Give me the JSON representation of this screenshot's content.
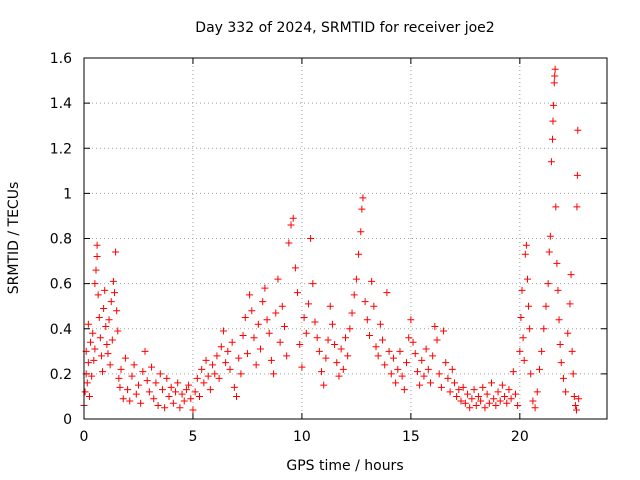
{
  "chart_data": {
    "type": "scatter",
    "title": "Day 332 of 2024, SRMTID for receiver joe2",
    "xlabel": "GPS time / hours",
    "ylabel": "SRMTID / TECUs",
    "xlim": [
      0,
      24
    ],
    "ylim": [
      0,
      1.6
    ],
    "xticks": [
      0,
      5,
      10,
      15,
      20
    ],
    "yticks": [
      0,
      0.2,
      0.4,
      0.6,
      0.8,
      1,
      1.2,
      1.4,
      1.6
    ],
    "xtick_labels": [
      "0",
      "5",
      "10",
      "15",
      "20"
    ],
    "ytick_labels": [
      "0",
      "0.2",
      "0.4",
      "0.6",
      "0.8",
      "1",
      "1.2",
      "1.4",
      "1.6"
    ],
    "grid": true,
    "marker": "+",
    "color": "#ff0000",
    "series": [
      {
        "name": "SRMTID",
        "points": [
          [
            0.0,
            0.06
          ],
          [
            0.05,
            0.12
          ],
          [
            0.1,
            0.2
          ],
          [
            0.1,
            0.3
          ],
          [
            0.15,
            0.16
          ],
          [
            0.2,
            0.25
          ],
          [
            0.2,
            0.42
          ],
          [
            0.25,
            0.1
          ],
          [
            0.3,
            0.34
          ],
          [
            0.35,
            0.19
          ],
          [
            0.4,
            0.38
          ],
          [
            0.45,
            0.26
          ],
          [
            0.5,
            0.31
          ],
          [
            0.5,
            0.6
          ],
          [
            0.55,
            0.66
          ],
          [
            0.6,
            0.72
          ],
          [
            0.6,
            0.77
          ],
          [
            0.65,
            0.55
          ],
          [
            0.7,
            0.45
          ],
          [
            0.75,
            0.36
          ],
          [
            0.8,
            0.28
          ],
          [
            0.85,
            0.21
          ],
          [
            0.9,
            0.49
          ],
          [
            0.95,
            0.57
          ],
          [
            1.0,
            0.41
          ],
          [
            1.05,
            0.33
          ],
          [
            1.1,
            0.29
          ],
          [
            1.15,
            0.44
          ],
          [
            1.2,
            0.24
          ],
          [
            1.25,
            0.52
          ],
          [
            1.3,
            0.35
          ],
          [
            1.35,
            0.61
          ],
          [
            1.4,
            0.56
          ],
          [
            1.45,
            0.74
          ],
          [
            1.5,
            0.48
          ],
          [
            1.55,
            0.39
          ],
          [
            1.6,
            0.18
          ],
          [
            1.65,
            0.14
          ],
          [
            1.7,
            0.22
          ],
          [
            1.8,
            0.09
          ],
          [
            1.9,
            0.27
          ],
          [
            2.0,
            0.13
          ],
          [
            2.1,
            0.08
          ],
          [
            2.2,
            0.19
          ],
          [
            2.3,
            0.24
          ],
          [
            2.4,
            0.11
          ],
          [
            2.5,
            0.15
          ],
          [
            2.6,
            0.07
          ],
          [
            2.7,
            0.21
          ],
          [
            2.8,
            0.3
          ],
          [
            2.9,
            0.17
          ],
          [
            3.0,
            0.12
          ],
          [
            3.1,
            0.23
          ],
          [
            3.2,
            0.09
          ],
          [
            3.3,
            0.16
          ],
          [
            3.4,
            0.06
          ],
          [
            3.5,
            0.2
          ],
          [
            3.6,
            0.13
          ],
          [
            3.7,
            0.05
          ],
          [
            3.8,
            0.18
          ],
          [
            3.9,
            0.1
          ],
          [
            4.0,
            0.14
          ],
          [
            4.1,
            0.07
          ],
          [
            4.2,
            0.12
          ],
          [
            4.3,
            0.16
          ],
          [
            4.4,
            0.05
          ],
          [
            4.5,
            0.11
          ],
          [
            4.6,
            0.08
          ],
          [
            4.7,
            0.13
          ],
          [
            4.8,
            0.15
          ],
          [
            4.9,
            0.09
          ],
          [
            5.0,
            0.04
          ],
          [
            5.1,
            0.12
          ],
          [
            5.2,
            0.18
          ],
          [
            5.3,
            0.1
          ],
          [
            5.4,
            0.22
          ],
          [
            5.5,
            0.16
          ],
          [
            5.6,
            0.26
          ],
          [
            5.7,
            0.19
          ],
          [
            5.8,
            0.13
          ],
          [
            5.9,
            0.24
          ],
          [
            6.0,
            0.2
          ],
          [
            6.1,
            0.28
          ],
          [
            6.2,
            0.18
          ],
          [
            6.3,
            0.32
          ],
          [
            6.4,
            0.39
          ],
          [
            6.5,
            0.25
          ],
          [
            6.6,
            0.3
          ],
          [
            6.7,
            0.22
          ],
          [
            6.8,
            0.34
          ],
          [
            6.9,
            0.14
          ],
          [
            7.0,
            0.1
          ],
          [
            7.1,
            0.27
          ],
          [
            7.2,
            0.2
          ],
          [
            7.3,
            0.37
          ],
          [
            7.4,
            0.45
          ],
          [
            7.5,
            0.29
          ],
          [
            7.6,
            0.55
          ],
          [
            7.7,
            0.48
          ],
          [
            7.8,
            0.36
          ],
          [
            7.9,
            0.24
          ],
          [
            8.0,
            0.42
          ],
          [
            8.1,
            0.31
          ],
          [
            8.2,
            0.52
          ],
          [
            8.3,
            0.58
          ],
          [
            8.4,
            0.44
          ],
          [
            8.5,
            0.38
          ],
          [
            8.6,
            0.26
          ],
          [
            8.7,
            0.2
          ],
          [
            8.8,
            0.47
          ],
          [
            8.9,
            0.62
          ],
          [
            9.0,
            0.34
          ],
          [
            9.1,
            0.5
          ],
          [
            9.2,
            0.41
          ],
          [
            9.3,
            0.28
          ],
          [
            9.4,
            0.78
          ],
          [
            9.5,
            0.86
          ],
          [
            9.6,
            0.89
          ],
          [
            9.7,
            0.67
          ],
          [
            9.8,
            0.56
          ],
          [
            9.9,
            0.33
          ],
          [
            10.0,
            0.23
          ],
          [
            10.1,
            0.45
          ],
          [
            10.2,
            0.38
          ],
          [
            10.3,
            0.51
          ],
          [
            10.4,
            0.8
          ],
          [
            10.5,
            0.6
          ],
          [
            10.6,
            0.43
          ],
          [
            10.7,
            0.36
          ],
          [
            10.8,
            0.3
          ],
          [
            10.9,
            0.21
          ],
          [
            11.0,
            0.15
          ],
          [
            11.1,
            0.27
          ],
          [
            11.2,
            0.35
          ],
          [
            11.3,
            0.5
          ],
          [
            11.4,
            0.42
          ],
          [
            11.5,
            0.33
          ],
          [
            11.6,
            0.25
          ],
          [
            11.7,
            0.19
          ],
          [
            11.8,
            0.31
          ],
          [
            11.9,
            0.22
          ],
          [
            12.0,
            0.36
          ],
          [
            12.1,
            0.28
          ],
          [
            12.2,
            0.4
          ],
          [
            12.3,
            0.47
          ],
          [
            12.4,
            0.55
          ],
          [
            12.5,
            0.62
          ],
          [
            12.6,
            0.73
          ],
          [
            12.7,
            0.83
          ],
          [
            12.75,
            0.93
          ],
          [
            12.8,
            0.98
          ],
          [
            12.9,
            0.52
          ],
          [
            13.0,
            0.44
          ],
          [
            13.1,
            0.37
          ],
          [
            13.2,
            0.61
          ],
          [
            13.3,
            0.5
          ],
          [
            13.4,
            0.32
          ],
          [
            13.5,
            0.28
          ],
          [
            13.6,
            0.42
          ],
          [
            13.7,
            0.35
          ],
          [
            13.8,
            0.24
          ],
          [
            13.9,
            0.56
          ],
          [
            14.0,
            0.3
          ],
          [
            14.1,
            0.2
          ],
          [
            14.2,
            0.27
          ],
          [
            14.3,
            0.16
          ],
          [
            14.4,
            0.22
          ],
          [
            14.5,
            0.3
          ],
          [
            14.6,
            0.19
          ],
          [
            14.7,
            0.13
          ],
          [
            14.8,
            0.25
          ],
          [
            14.9,
            0.36
          ],
          [
            15.0,
            0.44
          ],
          [
            15.1,
            0.34
          ],
          [
            15.2,
            0.29
          ],
          [
            15.3,
            0.21
          ],
          [
            15.4,
            0.15
          ],
          [
            15.5,
            0.26
          ],
          [
            15.6,
            0.19
          ],
          [
            15.7,
            0.31
          ],
          [
            15.8,
            0.22
          ],
          [
            15.9,
            0.16
          ],
          [
            16.0,
            0.28
          ],
          [
            16.1,
            0.41
          ],
          [
            16.2,
            0.35
          ],
          [
            16.3,
            0.2
          ],
          [
            16.4,
            0.14
          ],
          [
            16.5,
            0.39
          ],
          [
            16.6,
            0.25
          ],
          [
            16.7,
            0.18
          ],
          [
            16.8,
            0.12
          ],
          [
            16.9,
            0.22
          ],
          [
            17.0,
            0.16
          ],
          [
            17.1,
            0.1
          ],
          [
            17.2,
            0.13
          ],
          [
            17.3,
            0.08
          ],
          [
            17.4,
            0.14
          ],
          [
            17.5,
            0.07
          ],
          [
            17.6,
            0.11
          ],
          [
            17.7,
            0.05
          ],
          [
            17.8,
            0.09
          ],
          [
            17.9,
            0.13
          ],
          [
            18.0,
            0.06
          ],
          [
            18.1,
            0.1
          ],
          [
            18.2,
            0.08
          ],
          [
            18.3,
            0.14
          ],
          [
            18.4,
            0.05
          ],
          [
            18.5,
            0.11
          ],
          [
            18.6,
            0.07
          ],
          [
            18.7,
            0.16
          ],
          [
            18.8,
            0.09
          ],
          [
            18.9,
            0.06
          ],
          [
            19.0,
            0.12
          ],
          [
            19.1,
            0.08
          ],
          [
            19.2,
            0.15
          ],
          [
            19.3,
            0.1
          ],
          [
            19.4,
            0.07
          ],
          [
            19.5,
            0.13
          ],
          [
            19.6,
            0.09
          ],
          [
            19.7,
            0.21
          ],
          [
            19.8,
            0.11
          ],
          [
            19.9,
            0.06
          ],
          [
            20.0,
            0.3
          ],
          [
            20.05,
            0.45
          ],
          [
            20.1,
            0.57
          ],
          [
            20.15,
            0.36
          ],
          [
            20.2,
            0.26
          ],
          [
            20.25,
            0.73
          ],
          [
            20.3,
            0.77
          ],
          [
            20.35,
            0.62
          ],
          [
            20.4,
            0.5
          ],
          [
            20.45,
            0.4
          ],
          [
            20.5,
            0.2
          ],
          [
            20.6,
            0.08
          ],
          [
            20.7,
            0.05
          ],
          [
            20.8,
            0.12
          ],
          [
            20.9,
            0.22
          ],
          [
            21.0,
            0.3
          ],
          [
            21.1,
            0.4
          ],
          [
            21.2,
            0.5
          ],
          [
            21.3,
            0.6
          ],
          [
            21.35,
            0.74
          ],
          [
            21.4,
            0.81
          ],
          [
            21.45,
            1.14
          ],
          [
            21.5,
            1.24
          ],
          [
            21.52,
            1.32
          ],
          [
            21.55,
            1.39
          ],
          [
            21.58,
            1.49
          ],
          [
            21.6,
            1.52
          ],
          [
            21.62,
            1.55
          ],
          [
            21.65,
            0.94
          ],
          [
            21.7,
            0.69
          ],
          [
            21.75,
            0.57
          ],
          [
            21.8,
            0.44
          ],
          [
            21.85,
            0.33
          ],
          [
            21.9,
            0.25
          ],
          [
            22.0,
            0.18
          ],
          [
            22.1,
            0.12
          ],
          [
            22.2,
            0.38
          ],
          [
            22.3,
            0.51
          ],
          [
            22.35,
            0.64
          ],
          [
            22.4,
            0.3
          ],
          [
            22.45,
            0.2
          ],
          [
            22.5,
            0.1
          ],
          [
            22.55,
            0.06
          ],
          [
            22.6,
            0.04
          ],
          [
            22.62,
            0.94
          ],
          [
            22.64,
            1.08
          ],
          [
            22.66,
            1.28
          ],
          [
            22.7,
            0.09
          ]
        ]
      }
    ]
  }
}
